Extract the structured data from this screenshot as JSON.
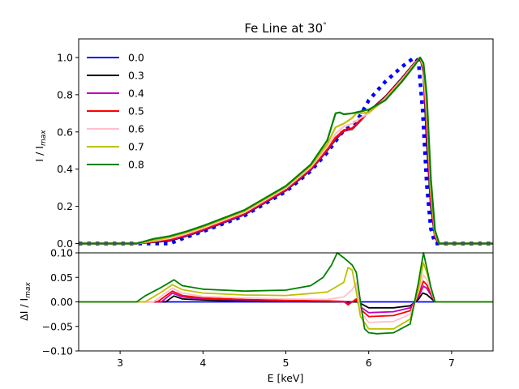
{
  "chart_data": [
    {
      "type": "line",
      "title": "Fe Line at 30",
      "title_degree": "°",
      "xlabel": "",
      "ylabel_main": "I / I",
      "ylabel_sub": "max",
      "xlim": [
        2.5,
        7.5
      ],
      "ylim": [
        -0.05,
        1.1
      ],
      "yticks": [
        0.0,
        0.2,
        0.4,
        0.6,
        0.8,
        1.0
      ],
      "ytick_labels": [
        "0.0",
        "0.2",
        "0.4",
        "0.6",
        "0.8",
        "1.0"
      ],
      "legend_position": "upper-left",
      "series": [
        {
          "name": "0.0",
          "color": "#0000ff",
          "style": "dotted",
          "x": [
            2.5,
            3.0,
            3.4,
            3.6,
            3.8,
            4.0,
            4.5,
            5.0,
            5.3,
            5.5,
            5.6,
            5.7,
            5.8,
            5.9,
            6.0,
            6.2,
            6.4,
            6.55,
            6.6,
            6.65,
            6.7,
            6.75,
            6.8,
            6.85,
            6.9,
            7.5
          ],
          "y": [
            0.0,
            0.0,
            0.0,
            0.0,
            0.035,
            0.065,
            0.15,
            0.28,
            0.39,
            0.49,
            0.55,
            0.61,
            0.63,
            0.69,
            0.77,
            0.87,
            0.95,
            1.0,
            0.98,
            0.72,
            0.32,
            0.08,
            0.0,
            0.0,
            0.0,
            0.0
          ]
        },
        {
          "name": "0.3",
          "color": "#000000",
          "style": "solid",
          "x": [
            2.5,
            3.2,
            3.6,
            3.8,
            4.0,
            4.5,
            5.0,
            5.3,
            5.5,
            5.6,
            5.7,
            5.8,
            5.9,
            6.0,
            6.2,
            6.4,
            6.55,
            6.62,
            6.66,
            6.7,
            6.75,
            6.8,
            6.85,
            6.9,
            7.5
          ],
          "y": [
            0.0,
            0.0,
            0.015,
            0.04,
            0.07,
            0.155,
            0.285,
            0.395,
            0.5,
            0.56,
            0.605,
            0.615,
            0.66,
            0.71,
            0.79,
            0.89,
            0.97,
            1.0,
            0.92,
            0.55,
            0.2,
            0.03,
            0.0,
            0.0,
            0.0
          ]
        },
        {
          "name": "0.4",
          "color": "#bf00bf",
          "style": "solid",
          "x": [
            2.5,
            3.2,
            3.6,
            3.8,
            4.0,
            4.5,
            5.0,
            5.3,
            5.5,
            5.6,
            5.7,
            5.8,
            5.9,
            6.0,
            6.2,
            6.4,
            6.55,
            6.62,
            6.66,
            6.7,
            6.75,
            6.8,
            6.85,
            6.9,
            7.5
          ],
          "y": [
            0.0,
            0.0,
            0.018,
            0.043,
            0.073,
            0.158,
            0.288,
            0.398,
            0.503,
            0.565,
            0.607,
            0.617,
            0.662,
            0.707,
            0.787,
            0.887,
            0.968,
            1.0,
            0.93,
            0.6,
            0.22,
            0.035,
            0.0,
            0.0,
            0.0
          ]
        },
        {
          "name": "0.5",
          "color": "#ff0000",
          "style": "solid",
          "x": [
            2.5,
            3.2,
            3.6,
            3.8,
            4.0,
            4.5,
            5.0,
            5.3,
            5.5,
            5.6,
            5.7,
            5.8,
            5.9,
            6.0,
            6.2,
            6.4,
            6.55,
            6.62,
            6.66,
            6.7,
            6.75,
            6.8,
            6.85,
            6.9,
            7.5
          ],
          "y": [
            0.0,
            0.0,
            0.022,
            0.047,
            0.077,
            0.162,
            0.292,
            0.402,
            0.508,
            0.57,
            0.61,
            0.62,
            0.665,
            0.705,
            0.785,
            0.885,
            0.966,
            1.0,
            0.94,
            0.65,
            0.25,
            0.04,
            0.0,
            0.0,
            0.0
          ]
        },
        {
          "name": "0.6",
          "color": "#ffc0cb",
          "style": "solid",
          "x": [
            2.5,
            3.2,
            3.6,
            3.8,
            4.0,
            4.5,
            5.0,
            5.3,
            5.5,
            5.6,
            5.7,
            5.8,
            5.9,
            6.0,
            6.2,
            6.4,
            6.55,
            6.62,
            6.66,
            6.7,
            6.75,
            6.8,
            6.85,
            6.9,
            7.5
          ],
          "y": [
            0.0,
            0.0,
            0.028,
            0.053,
            0.083,
            0.168,
            0.298,
            0.41,
            0.52,
            0.59,
            0.63,
            0.645,
            0.675,
            0.7,
            0.78,
            0.88,
            0.963,
            1.0,
            0.95,
            0.7,
            0.28,
            0.05,
            0.0,
            0.0,
            0.0
          ]
        },
        {
          "name": "0.7",
          "color": "#bfbf00",
          "style": "solid",
          "x": [
            2.5,
            3.2,
            3.6,
            3.8,
            4.0,
            4.5,
            5.0,
            5.3,
            5.5,
            5.6,
            5.7,
            5.8,
            5.85,
            5.9,
            6.0,
            6.2,
            6.4,
            6.55,
            6.62,
            6.66,
            6.7,
            6.75,
            6.8,
            6.85,
            6.9,
            7.5
          ],
          "y": [
            0.0,
            0.0,
            0.035,
            0.06,
            0.09,
            0.175,
            0.305,
            0.418,
            0.535,
            0.625,
            0.645,
            0.675,
            0.7,
            0.7,
            0.705,
            0.775,
            0.875,
            0.96,
            1.0,
            0.96,
            0.75,
            0.3,
            0.06,
            0.0,
            0.0,
            0.0
          ]
        },
        {
          "name": "0.8",
          "color": "#008000",
          "style": "solid",
          "x": [
            2.5,
            3.2,
            3.4,
            3.6,
            3.8,
            4.0,
            4.5,
            5.0,
            5.3,
            5.5,
            5.6,
            5.65,
            5.7,
            5.8,
            5.9,
            6.0,
            6.2,
            6.4,
            6.55,
            6.62,
            6.66,
            6.7,
            6.75,
            6.8,
            6.85,
            6.9,
            7.5
          ],
          "y": [
            0.0,
            0.0,
            0.025,
            0.04,
            0.065,
            0.095,
            0.18,
            0.31,
            0.425,
            0.555,
            0.7,
            0.705,
            0.695,
            0.7,
            0.71,
            0.72,
            0.77,
            0.87,
            0.955,
            1.0,
            0.97,
            0.8,
            0.35,
            0.07,
            0.0,
            0.0,
            0.0
          ]
        }
      ]
    },
    {
      "type": "line",
      "title": "",
      "xlabel": "E [keV]",
      "ylabel_main": "ΔI / I",
      "ylabel_sub": "max",
      "xlim": [
        2.5,
        7.5
      ],
      "ylim": [
        -0.1,
        0.1
      ],
      "xticks": [
        3,
        4,
        5,
        6,
        7
      ],
      "xtick_labels": [
        "3",
        "4",
        "5",
        "6",
        "7"
      ],
      "yticks": [
        -0.1,
        -0.05,
        0.0,
        0.05,
        0.1
      ],
      "ytick_labels": [
        "−0.10",
        "−0.05",
        "0.00",
        "0.05",
        "0.10"
      ],
      "series": [
        {
          "name": "0.0",
          "color": "#0000ff",
          "x": [
            2.5,
            7.5
          ],
          "y": [
            0.0,
            0.0
          ]
        },
        {
          "name": "0.3",
          "color": "#000000",
          "x": [
            2.5,
            3.55,
            3.65,
            3.75,
            4.0,
            4.5,
            5.0,
            5.5,
            5.7,
            5.8,
            5.85,
            5.9,
            6.0,
            6.3,
            6.5,
            6.6,
            6.65,
            6.7,
            6.8,
            6.9,
            7.5
          ],
          "y": [
            0.0,
            0.0,
            0.012,
            0.006,
            0.004,
            0.002,
            0.001,
            0.0,
            0.0,
            0.0,
            0.0,
            -0.003,
            -0.012,
            -0.012,
            -0.008,
            0.005,
            0.018,
            0.015,
            0.0,
            0.0,
            0.0
          ]
        },
        {
          "name": "0.4",
          "color": "#bf00bf",
          "x": [
            2.5,
            3.5,
            3.63,
            3.75,
            4.0,
            4.5,
            5.0,
            5.5,
            5.7,
            5.75,
            5.8,
            5.85,
            5.9,
            6.0,
            6.3,
            6.5,
            6.6,
            6.66,
            6.7,
            6.8,
            6.9,
            7.5
          ],
          "y": [
            0.0,
            0.0,
            0.018,
            0.01,
            0.006,
            0.004,
            0.002,
            0.001,
            0.0,
            -0.003,
            0.0,
            0.004,
            -0.01,
            -0.022,
            -0.02,
            -0.012,
            0.01,
            0.032,
            0.028,
            0.0,
            0.0,
            0.0
          ]
        },
        {
          "name": "0.5",
          "color": "#ff0000",
          "x": [
            2.5,
            3.45,
            3.63,
            3.75,
            4.0,
            4.5,
            5.0,
            5.5,
            5.7,
            5.75,
            5.8,
            5.85,
            5.9,
            6.0,
            6.3,
            6.5,
            6.6,
            6.66,
            6.7,
            6.8,
            6.9,
            7.5
          ],
          "y": [
            0.0,
            0.0,
            0.022,
            0.013,
            0.008,
            0.005,
            0.003,
            0.002,
            0.001,
            -0.006,
            0.0,
            0.006,
            -0.015,
            -0.03,
            -0.028,
            -0.018,
            0.015,
            0.042,
            0.035,
            0.0,
            0.0,
            0.0
          ]
        },
        {
          "name": "0.6",
          "color": "#ffc0cb",
          "x": [
            2.5,
            3.4,
            3.63,
            3.75,
            4.0,
            4.5,
            5.0,
            5.5,
            5.7,
            5.8,
            5.85,
            5.9,
            6.0,
            6.3,
            6.5,
            6.6,
            6.66,
            6.7,
            6.8,
            6.9,
            7.5
          ],
          "y": [
            0.0,
            0.0,
            0.028,
            0.018,
            0.011,
            0.008,
            0.006,
            0.005,
            0.01,
            0.025,
            0.04,
            -0.02,
            -0.042,
            -0.04,
            -0.025,
            0.02,
            0.055,
            0.045,
            0.0,
            0.0,
            0.0
          ]
        },
        {
          "name": "0.7",
          "color": "#bfbf00",
          "x": [
            2.5,
            3.3,
            3.5,
            3.63,
            3.75,
            4.0,
            4.5,
            5.0,
            5.5,
            5.6,
            5.7,
            5.75,
            5.8,
            5.85,
            5.9,
            6.0,
            6.3,
            6.5,
            6.6,
            6.66,
            6.7,
            6.8,
            6.9,
            7.5
          ],
          "y": [
            0.0,
            0.0,
            0.02,
            0.035,
            0.025,
            0.018,
            0.014,
            0.013,
            0.02,
            0.03,
            0.04,
            0.07,
            0.065,
            0.02,
            -0.03,
            -0.055,
            -0.055,
            -0.035,
            0.025,
            0.08,
            0.06,
            0.0,
            0.0,
            0.0
          ]
        },
        {
          "name": "0.8",
          "color": "#008000",
          "x": [
            2.5,
            3.2,
            3.3,
            3.5,
            3.65,
            3.75,
            4.0,
            4.5,
            5.0,
            5.3,
            5.45,
            5.55,
            5.62,
            5.7,
            5.8,
            5.85,
            5.9,
            5.95,
            6.0,
            6.1,
            6.3,
            6.5,
            6.6,
            6.66,
            6.7,
            6.75,
            6.8,
            6.9,
            7.5
          ],
          "y": [
            0.0,
            0.0,
            0.012,
            0.03,
            0.045,
            0.033,
            0.026,
            0.022,
            0.024,
            0.033,
            0.05,
            0.075,
            0.1,
            0.09,
            0.075,
            0.06,
            0.0,
            -0.055,
            -0.063,
            -0.065,
            -0.063,
            -0.045,
            0.04,
            0.1,
            0.07,
            0.03,
            0.0,
            0.0,
            0.0
          ]
        }
      ]
    }
  ]
}
